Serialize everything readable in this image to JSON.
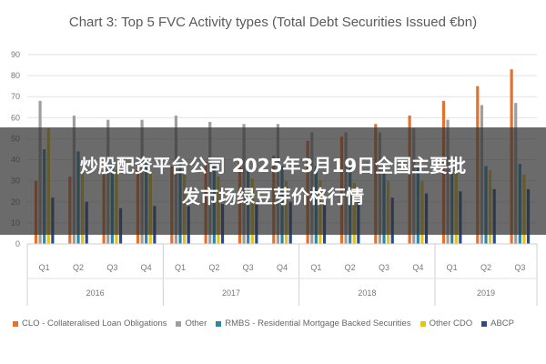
{
  "chart_data": {
    "type": "bar",
    "title": "Chart 3: Top 5 FVC Activity types (Total Debt Securities Issued €bn)",
    "xlabel": "",
    "ylabel": "",
    "ylim": [
      0,
      90
    ],
    "yticks": [
      0,
      10,
      20,
      30,
      40,
      50,
      60,
      70,
      80,
      90
    ],
    "grid": true,
    "legend_position": "bottom",
    "categories": [
      "Q1",
      "Q2",
      "Q3",
      "Q4",
      "Q1",
      "Q2",
      "Q3",
      "Q4",
      "Q1",
      "Q2",
      "Q3",
      "Q4",
      "Q1",
      "Q2",
      "Q3"
    ],
    "groups": [
      {
        "label": "2016",
        "span": 4
      },
      {
        "label": "2017",
        "span": 4
      },
      {
        "label": "2018",
        "span": 4
      },
      {
        "label": "2019",
        "span": 3
      }
    ],
    "series": [
      {
        "name": "CLO - Collateralised Loan Obligations",
        "color": "#e8702a",
        "values": [
          30,
          32,
          34,
          35,
          37,
          39,
          40,
          42,
          49,
          51,
          57,
          61,
          68,
          75,
          83
        ]
      },
      {
        "name": "Other",
        "color": "#9e9e9e",
        "values": [
          68,
          61,
          59,
          59,
          61,
          58,
          57,
          57,
          53,
          53,
          53,
          55,
          59,
          66,
          67
        ]
      },
      {
        "name": "RMBS - Residential Mortgage Backed Securities",
        "color": "#2e86a8",
        "values": [
          45,
          44,
          41,
          40,
          39,
          38,
          37,
          37,
          37,
          38,
          38,
          37,
          37,
          37,
          38
        ]
      },
      {
        "name": "Other CDO",
        "color": "#e6c21a",
        "values": [
          55,
          35,
          35,
          34,
          33,
          32,
          31,
          30,
          30,
          29,
          30,
          30,
          34,
          35,
          33
        ]
      },
      {
        "name": "ABCP",
        "color": "#2a4a8c",
        "values": [
          22,
          20,
          17,
          18,
          18,
          19,
          19,
          20,
          20,
          21,
          22,
          24,
          25,
          26,
          26
        ]
      }
    ]
  },
  "overlay": {
    "line1": "炒股配资平台公司 2025年3月19日全国主要批",
    "line2": "发市场绿豆芽价格行情"
  }
}
